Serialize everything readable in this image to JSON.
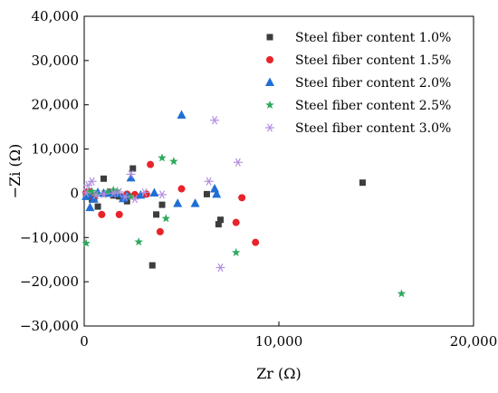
{
  "chart_data": {
    "type": "scatter",
    "xlabel": "Zr (Ω)",
    "ylabel": "−Zi (Ω)",
    "xlim": [
      0,
      20000
    ],
    "ylim": [
      -30000,
      40000
    ],
    "xticks": [
      0,
      10000,
      20000
    ],
    "xtick_labels": [
      "0",
      "10,000",
      "20,000"
    ],
    "yticks": [
      -30000,
      -20000,
      -10000,
      0,
      10000,
      20000,
      30000,
      40000
    ],
    "ytick_labels": [
      "−30,000",
      "−20,000",
      "−10,000",
      "0",
      "10,000",
      "20,000",
      "30,000",
      "40,000"
    ],
    "grid": false,
    "legend_position": "top-right",
    "series": [
      {
        "name": "Steel fiber content 1.0%",
        "marker": "square",
        "color": "#3d3d3d",
        "points": [
          [
            100,
            -300
          ],
          [
            200,
            200
          ],
          [
            300,
            -600
          ],
          [
            400,
            -1400
          ],
          [
            500,
            -400
          ],
          [
            700,
            -3000
          ],
          [
            1000,
            3300
          ],
          [
            1300,
            0
          ],
          [
            1500,
            -500
          ],
          [
            1800,
            -700
          ],
          [
            2000,
            -1000
          ],
          [
            2200,
            -1800
          ],
          [
            2500,
            5600
          ],
          [
            3500,
            -16300
          ],
          [
            3700,
            -4800
          ],
          [
            4000,
            -2600
          ],
          [
            6300,
            -200
          ],
          [
            6900,
            -7000
          ],
          [
            7000,
            -6000
          ],
          [
            14300,
            2400
          ]
        ]
      },
      {
        "name": "Steel fiber content 1.5%",
        "marker": "circle",
        "color": "#e8232a",
        "points": [
          [
            100,
            200
          ],
          [
            200,
            -300
          ],
          [
            300,
            400
          ],
          [
            500,
            -1300
          ],
          [
            900,
            -4800
          ],
          [
            1300,
            300
          ],
          [
            1600,
            -100
          ],
          [
            1800,
            -4800
          ],
          [
            2200,
            -200
          ],
          [
            2600,
            -300
          ],
          [
            3200,
            -200
          ],
          [
            3400,
            6500
          ],
          [
            3900,
            -8700
          ],
          [
            5000,
            1000
          ],
          [
            7800,
            -6600
          ],
          [
            8100,
            -1000
          ],
          [
            8800,
            -11100
          ]
        ]
      },
      {
        "name": "Steel fiber content 2.0%",
        "marker": "triangle",
        "color": "#1f6fd6",
        "points": [
          [
            100,
            -700
          ],
          [
            200,
            -200
          ],
          [
            300,
            -3200
          ],
          [
            500,
            -1300
          ],
          [
            700,
            200
          ],
          [
            1000,
            0
          ],
          [
            1300,
            0
          ],
          [
            1500,
            300
          ],
          [
            1700,
            -100
          ],
          [
            2000,
            -1200
          ],
          [
            2200,
            -500
          ],
          [
            2400,
            3500
          ],
          [
            2900,
            -400
          ],
          [
            3600,
            100
          ],
          [
            4800,
            -2300
          ],
          [
            5000,
            17700
          ],
          [
            5700,
            -2300
          ],
          [
            6700,
            1000
          ],
          [
            6800,
            -200
          ]
        ]
      },
      {
        "name": "Steel fiber content 2.5%",
        "marker": "star",
        "color": "#2eaa5c",
        "points": [
          [
            100,
            -11300
          ],
          [
            200,
            300
          ],
          [
            400,
            400
          ],
          [
            600,
            -300
          ],
          [
            1200,
            300
          ],
          [
            1500,
            700
          ],
          [
            1700,
            500
          ],
          [
            2400,
            -800
          ],
          [
            2800,
            -11000
          ],
          [
            4000,
            8000
          ],
          [
            4200,
            -5700
          ],
          [
            4600,
            7200
          ],
          [
            7800,
            -13400
          ],
          [
            16300,
            -22700
          ]
        ]
      },
      {
        "name": "Steel fiber content 3.0%",
        "marker": "asterisk",
        "color": "#b48ee0",
        "points": [
          [
            100,
            100
          ],
          [
            200,
            1800
          ],
          [
            400,
            2700
          ],
          [
            600,
            -400
          ],
          [
            1000,
            -200
          ],
          [
            1500,
            0
          ],
          [
            1800,
            300
          ],
          [
            2100,
            -800
          ],
          [
            2400,
            4300
          ],
          [
            2600,
            -1300
          ],
          [
            3100,
            200
          ],
          [
            4000,
            -300
          ],
          [
            6400,
            2700
          ],
          [
            6700,
            16500
          ],
          [
            7000,
            -16800
          ],
          [
            7900,
            7000
          ]
        ]
      }
    ]
  }
}
